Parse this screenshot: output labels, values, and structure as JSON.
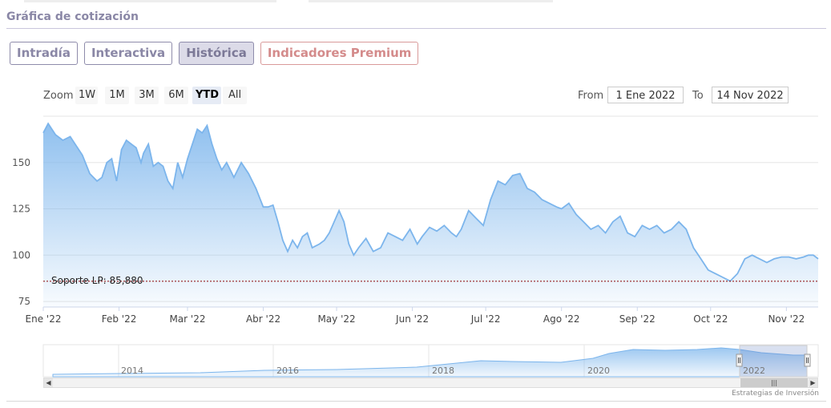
{
  "section_title": "Gráfica de cotización",
  "tabs": [
    {
      "label": "Intradía"
    },
    {
      "label": "Interactiva"
    },
    {
      "label": "Histórica"
    },
    {
      "label": "Indicadores Premium"
    }
  ],
  "zoom": {
    "label": "Zoom",
    "buttons": [
      "1W",
      "1M",
      "3M",
      "6M",
      "YTD",
      "All"
    ],
    "selected": "YTD"
  },
  "range": {
    "from_label": "From",
    "from_value": "1 Ene 2022",
    "to_label": "To",
    "to_value": "14 Nov 2022"
  },
  "credit": "Estrategias de Inversión",
  "colors": {
    "line": "#7cb5ec",
    "area_top": "#7cb5ec",
    "support_line": "#8b0000",
    "tab_active_bg": "#dcdbe8",
    "premium": "#d48b8b"
  },
  "chart_data": {
    "type": "area",
    "ylim": [
      72,
      175
    ],
    "yticks": [
      75,
      100,
      125,
      150
    ],
    "x_range": [
      "2022-01-01",
      "2022-11-14"
    ],
    "xticks": [
      {
        "date": "2022-01-01",
        "label": "Ene '22"
      },
      {
        "date": "2022-02-01",
        "label": "Feb '22"
      },
      {
        "date": "2022-03-01",
        "label": "Mar '22"
      },
      {
        "date": "2022-04-01",
        "label": "Abr '22"
      },
      {
        "date": "2022-05-01",
        "label": "May '22"
      },
      {
        "date": "2022-06-01",
        "label": "Jun '22"
      },
      {
        "date": "2022-07-01",
        "label": "Jul '22"
      },
      {
        "date": "2022-08-01",
        "label": "Ago '22"
      },
      {
        "date": "2022-09-01",
        "label": "Sep '22"
      },
      {
        "date": "2022-10-01",
        "label": "Oct '22"
      },
      {
        "date": "2022-11-01",
        "label": "Nov '22"
      }
    ],
    "support": {
      "label": "Soporte LP: 85,880",
      "value": 85.88
    },
    "series": [
      {
        "x": [
          "2022-01-01",
          "2022-01-03",
          "2022-01-06",
          "2022-01-09",
          "2022-01-12",
          "2022-01-14",
          "2022-01-17",
          "2022-01-20",
          "2022-01-23",
          "2022-01-25",
          "2022-01-27",
          "2022-01-29",
          "2022-01-31",
          "2022-02-02",
          "2022-02-04",
          "2022-02-06",
          "2022-02-08",
          "2022-02-10",
          "2022-02-11",
          "2022-02-13",
          "2022-02-15",
          "2022-02-17",
          "2022-02-19",
          "2022-02-21",
          "2022-02-23",
          "2022-02-25",
          "2022-02-27",
          "2022-03-01",
          "2022-03-03",
          "2022-03-05",
          "2022-03-07",
          "2022-03-09",
          "2022-03-11",
          "2022-03-13",
          "2022-03-15",
          "2022-03-17",
          "2022-03-20",
          "2022-03-23",
          "2022-03-26",
          "2022-03-29",
          "2022-04-01",
          "2022-04-03",
          "2022-04-05",
          "2022-04-07",
          "2022-04-09",
          "2022-04-11",
          "2022-04-13",
          "2022-04-15",
          "2022-04-17",
          "2022-04-19",
          "2022-04-21",
          "2022-04-24",
          "2022-04-26",
          "2022-04-28",
          "2022-04-30",
          "2022-05-02",
          "2022-05-04",
          "2022-05-06",
          "2022-05-08",
          "2022-05-10",
          "2022-05-13",
          "2022-05-16",
          "2022-05-19",
          "2022-05-22",
          "2022-05-25",
          "2022-05-28",
          "2022-05-31",
          "2022-06-03",
          "2022-06-05",
          "2022-06-08",
          "2022-06-11",
          "2022-06-14",
          "2022-06-17",
          "2022-06-19",
          "2022-06-21",
          "2022-06-24",
          "2022-06-27",
          "2022-06-30",
          "2022-07-03",
          "2022-07-06",
          "2022-07-09",
          "2022-07-12",
          "2022-07-15",
          "2022-07-18",
          "2022-07-21",
          "2022-07-24",
          "2022-07-27",
          "2022-07-30",
          "2022-08-01",
          "2022-08-04",
          "2022-08-07",
          "2022-08-10",
          "2022-08-13",
          "2022-08-16",
          "2022-08-19",
          "2022-08-22",
          "2022-08-25",
          "2022-08-28",
          "2022-08-31",
          "2022-09-03",
          "2022-09-06",
          "2022-09-09",
          "2022-09-12",
          "2022-09-15",
          "2022-09-18",
          "2022-09-21",
          "2022-09-24",
          "2022-09-27",
          "2022-09-30",
          "2022-10-03",
          "2022-10-06",
          "2022-10-09",
          "2022-10-12",
          "2022-10-15",
          "2022-10-18",
          "2022-10-21",
          "2022-10-24",
          "2022-10-27",
          "2022-10-30",
          "2022-11-02",
          "2022-11-05",
          "2022-11-08",
          "2022-11-10",
          "2022-11-12",
          "2022-11-14"
        ],
        "y": [
          166,
          171,
          165,
          162,
          164,
          160,
          154,
          144,
          140,
          142,
          150,
          152,
          140,
          157,
          162,
          160,
          158,
          150,
          155,
          160,
          148,
          150,
          148,
          140,
          136,
          150,
          142,
          152,
          160,
          168,
          166,
          170,
          160,
          152,
          146,
          150,
          142,
          150,
          144,
          136,
          126,
          126,
          127,
          118,
          108,
          102,
          108,
          104,
          110,
          112,
          104,
          106,
          108,
          112,
          118,
          124,
          118,
          106,
          100,
          104,
          109,
          102,
          104,
          112,
          110,
          108,
          114,
          106,
          110,
          115,
          113,
          116,
          112,
          110,
          114,
          124,
          120,
          116,
          130,
          140,
          138,
          143,
          144,
          136,
          134,
          130,
          128,
          126,
          125,
          128,
          122,
          118,
          114,
          116,
          112,
          118,
          121,
          112,
          110,
          116,
          114,
          116,
          112,
          114,
          118,
          114,
          104,
          98,
          92,
          90,
          88,
          86,
          90,
          98,
          100,
          98,
          96,
          98,
          99,
          99,
          98,
          99,
          100,
          100,
          98
        ]
      }
    ]
  },
  "navigator": {
    "year_labels": [
      "2014",
      "2016",
      "2018",
      "2020",
      "2022"
    ]
  }
}
